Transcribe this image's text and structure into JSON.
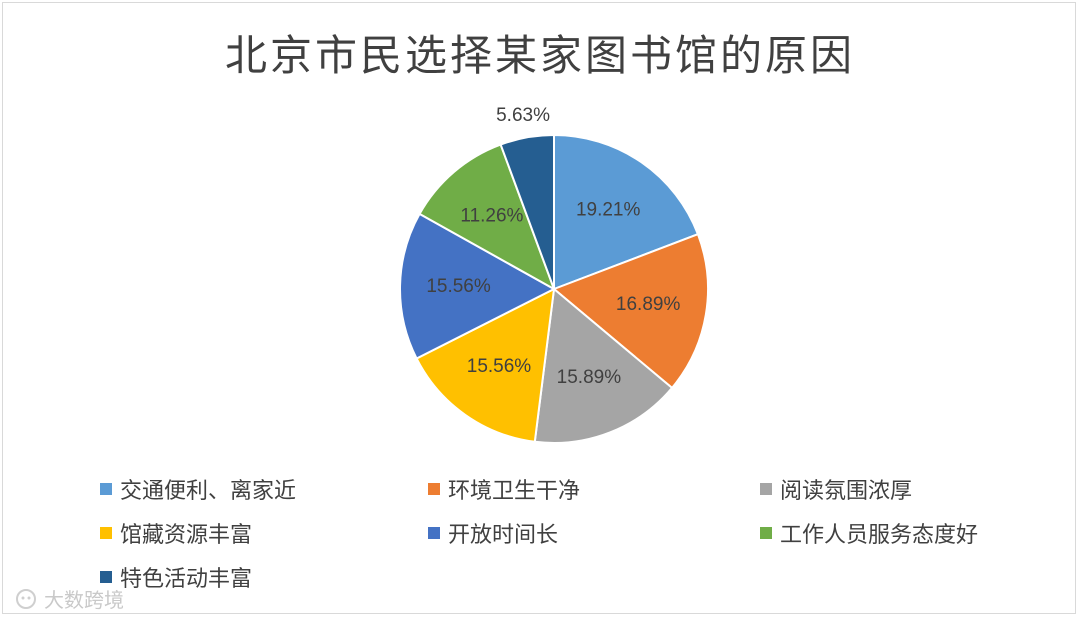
{
  "chart_data": {
    "type": "pie",
    "title": "北京市民选择某家图书馆的原因",
    "categories": [
      "交通便利、离家近",
      "环境卫生干净",
      "阅读氛围浓厚",
      "馆藏资源丰富",
      "开放时间长",
      "工作人员服务态度好",
      "特色活动丰富"
    ],
    "values": [
      19.21,
      16.89,
      15.89,
      15.56,
      15.56,
      11.26,
      5.63
    ],
    "data_labels": [
      "19.21%",
      "16.89%",
      "15.89%",
      "15.56%",
      "15.56%",
      "11.26%",
      "5.63%"
    ],
    "colors": [
      "#5B9BD5",
      "#ED7D31",
      "#A5A5A5",
      "#FFC000",
      "#4472C4",
      "#70AD47",
      "#255E91"
    ],
    "legend_position": "bottom"
  },
  "watermark": "大数跨境"
}
